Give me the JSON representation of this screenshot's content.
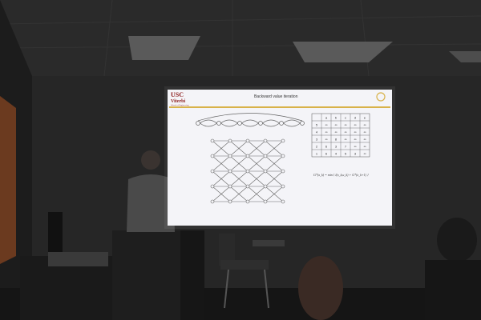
{
  "scene": {
    "description_free": true
  },
  "slide": {
    "logo_line1": "USC",
    "logo_line2": "Viterbi",
    "logo_line3": "School of Engineering",
    "title": "Backward value iteration",
    "table_header": [
      "",
      "a",
      "b",
      "c",
      "d",
      "e"
    ],
    "table_rows": [
      [
        "5",
        "∞",
        "∞",
        "∞",
        "∞",
        "∞"
      ],
      [
        "4",
        "∞",
        "∞",
        "∞",
        "∞",
        "∞"
      ],
      [
        "3",
        "∞",
        "8",
        "∞",
        "∞",
        "∞"
      ],
      [
        "2",
        "6",
        "3",
        "7",
        "∞",
        "∞"
      ],
      [
        "1",
        "6",
        "4",
        "5",
        "3",
        "∞"
      ]
    ],
    "formula": "G*(x_k) = min { l(x_k,u_k) + G*(x_k+1) }"
  },
  "colors": {
    "screen": "#f4f4f8",
    "usc_red": "#8b1a1a",
    "usc_gold": "#d8b24a",
    "wall": "#2b2b2b"
  }
}
